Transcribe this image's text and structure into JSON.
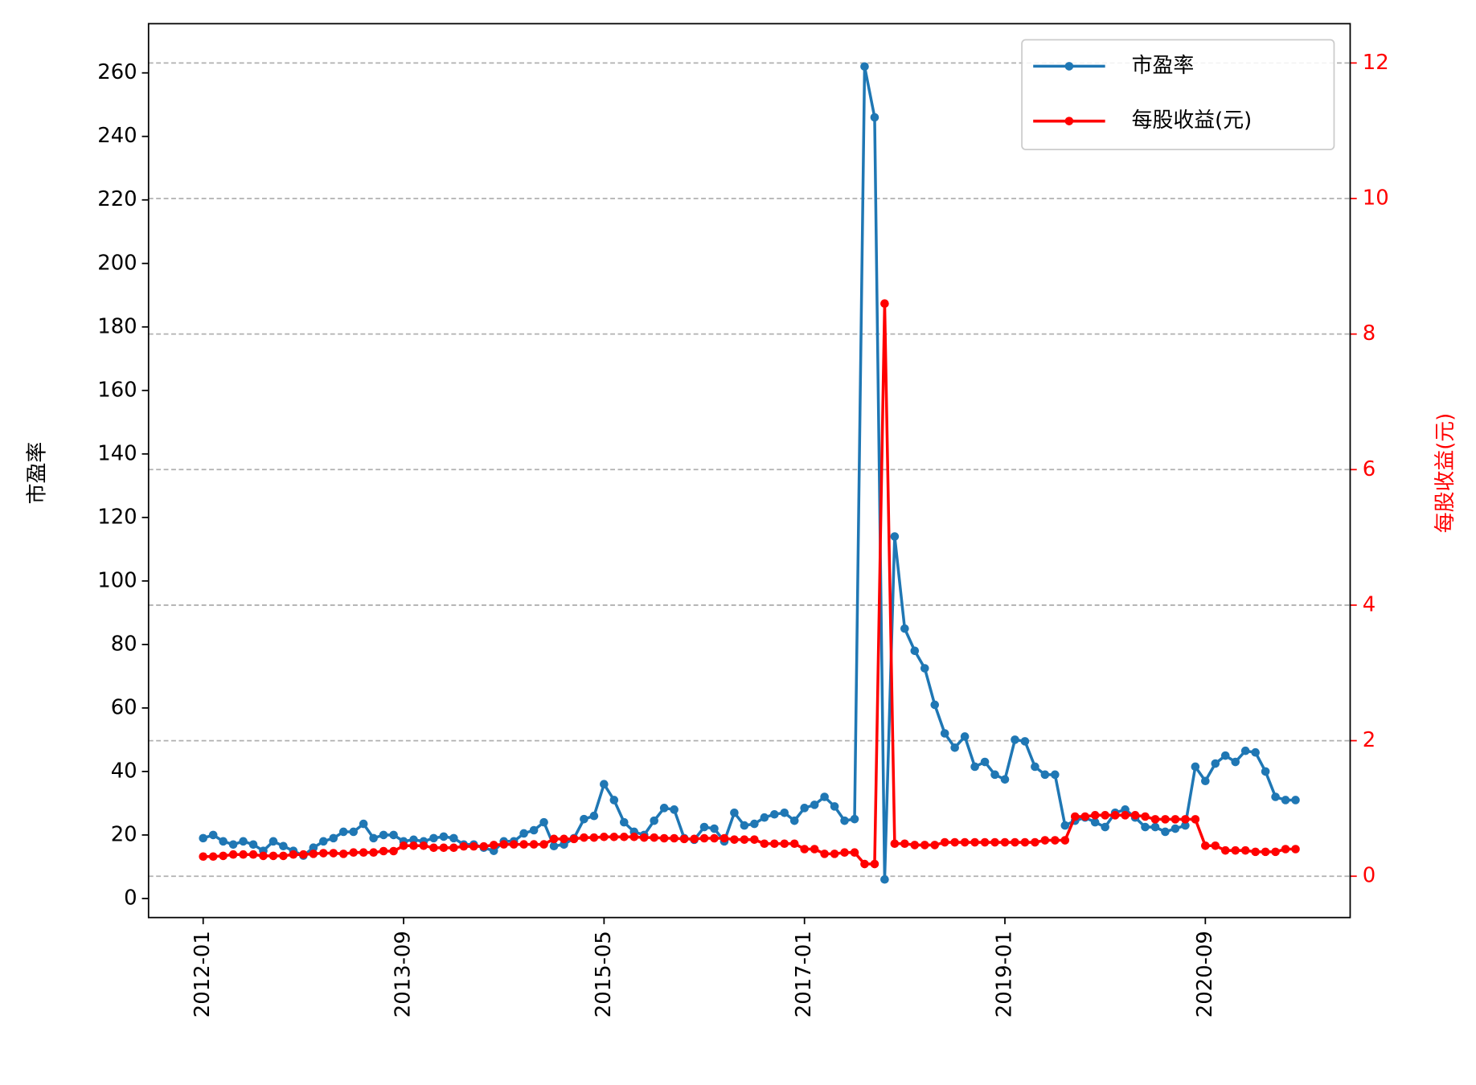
{
  "chart_data": {
    "type": "line",
    "categories": [
      "2012-01",
      null,
      null,
      null,
      null,
      null,
      null,
      null,
      null,
      null,
      null,
      null,
      null,
      null,
      null,
      null,
      null,
      null,
      null,
      null,
      "2013-09",
      null,
      null,
      null,
      null,
      null,
      null,
      null,
      null,
      null,
      null,
      null,
      null,
      null,
      null,
      null,
      null,
      null,
      null,
      null,
      "2015-05",
      null,
      null,
      null,
      null,
      null,
      null,
      null,
      null,
      null,
      null,
      null,
      null,
      null,
      null,
      null,
      null,
      null,
      null,
      null,
      "2017-01",
      null,
      null,
      null,
      null,
      null,
      null,
      null,
      null,
      null,
      null,
      null,
      null,
      null,
      null,
      null,
      null,
      null,
      null,
      null,
      "2019-01",
      null,
      null,
      null,
      null,
      null,
      null,
      null,
      null,
      null,
      null,
      null,
      null,
      null,
      null,
      null,
      null,
      null,
      null,
      null,
      "2020-09",
      null,
      null,
      null,
      null,
      null,
      null,
      null,
      null,
      null
    ],
    "series": [
      {
        "name": "市盈率",
        "color": "#1f77b4",
        "axis": "y",
        "values": [
          19,
          20,
          18,
          17,
          18,
          17,
          15,
          18,
          16.5,
          15,
          13.5,
          16,
          18,
          19,
          21,
          21,
          23.5,
          19,
          20,
          20,
          18,
          18.5,
          18,
          19,
          19.5,
          19,
          17,
          17,
          16,
          15,
          18,
          18,
          20.5,
          21.5,
          24,
          16.5,
          17,
          19,
          25,
          26,
          36,
          31,
          24,
          21,
          20,
          24.5,
          28.5,
          28,
          19,
          18.5,
          22.5,
          22,
          18,
          27,
          23,
          23.5,
          25.5,
          26.5,
          27,
          24.5,
          28.5,
          29.5,
          32,
          29,
          24.5,
          25,
          262,
          246,
          6,
          114,
          85,
          78,
          72.5,
          61,
          52,
          47.5,
          51,
          41.5,
          43,
          39,
          37.5,
          50,
          49.5,
          41.5,
          39,
          39,
          23,
          24.5,
          25.5,
          24,
          22.5,
          27,
          28,
          25.5,
          22.5,
          22.5,
          21,
          22,
          23,
          41.5,
          37,
          42.5,
          45,
          43,
          46.5,
          46,
          40,
          32,
          31,
          31
        ]
      },
      {
        "name": "每股收益(元)",
        "color": "#ff0000",
        "axis": "y2",
        "values": [
          0.29,
          0.29,
          0.3,
          0.32,
          0.32,
          0.32,
          0.3,
          0.3,
          0.3,
          0.32,
          0.32,
          0.33,
          0.34,
          0.34,
          0.33,
          0.35,
          0.35,
          0.35,
          0.37,
          0.37,
          0.45,
          0.45,
          0.45,
          0.42,
          0.42,
          0.42,
          0.44,
          0.44,
          0.44,
          0.46,
          0.47,
          0.47,
          0.47,
          0.47,
          0.47,
          0.55,
          0.55,
          0.55,
          0.57,
          0.57,
          0.58,
          0.58,
          0.58,
          0.58,
          0.57,
          0.57,
          0.56,
          0.56,
          0.55,
          0.55,
          0.56,
          0.56,
          0.56,
          0.54,
          0.54,
          0.54,
          0.48,
          0.48,
          0.48,
          0.48,
          0.4,
          0.4,
          0.33,
          0.33,
          0.35,
          0.35,
          0.18,
          0.18,
          8.45,
          0.48,
          0.48,
          0.46,
          0.46,
          0.46,
          0.5,
          0.5,
          0.5,
          0.5,
          0.5,
          0.5,
          0.5,
          0.5,
          0.5,
          0.5,
          0.53,
          0.53,
          0.53,
          0.88,
          0.88,
          0.9,
          0.9,
          0.9,
          0.9,
          0.9,
          0.88,
          0.84,
          0.84,
          0.84,
          0.84,
          0.84,
          0.45,
          0.45,
          0.38,
          0.38,
          0.38,
          0.36,
          0.36,
          0.36,
          0.4,
          0.4
        ]
      }
    ],
    "y_label": "市盈率",
    "y2_label": "每股收益(元)",
    "ylim": [
      -6,
      275.5
    ],
    "yticks": [
      0,
      20,
      40,
      60,
      80,
      100,
      120,
      140,
      160,
      180,
      200,
      220,
      240,
      260
    ],
    "y2lim": [
      -0.61,
      12.58
    ],
    "y2ticks": [
      0,
      2,
      4,
      6,
      8,
      10,
      12
    ],
    "y2_color": "#ff0000",
    "grid": "y2",
    "legend": "upper right"
  }
}
